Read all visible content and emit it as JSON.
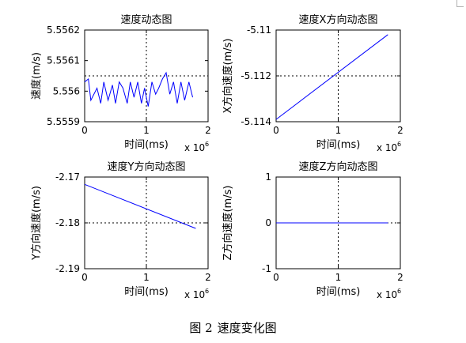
{
  "figure": {
    "caption_number": "图 2",
    "caption_text": "速度变化图"
  },
  "chart_data": [
    {
      "type": "line",
      "title": "速度动态图",
      "xlabel": "时间(ms)",
      "ylabel": "速度(m/s)",
      "x_exponent_label": "x 10",
      "x_exponent_power": "6",
      "xlim": [
        0,
        2
      ],
      "ylim": [
        5.5559,
        5.5562
      ],
      "xticks": [
        "0",
        "1",
        "2"
      ],
      "yticks": [
        "5.5559",
        "5.556",
        "5.5561",
        "5.5562"
      ],
      "ytick_values": [
        5.5559,
        5.556,
        5.5561,
        5.5562
      ],
      "grid": "dotted at x=1 and middle y",
      "color": "#0000ff",
      "series": [
        {
          "x": [
            0,
            0.06,
            0.1,
            0.2,
            0.26,
            0.31,
            0.38,
            0.45,
            0.5,
            0.56,
            0.62,
            0.69,
            0.74,
            0.8,
            0.86,
            0.92,
            0.97,
            1.03,
            1.09,
            1.15,
            1.2,
            1.26,
            1.32,
            1.38,
            1.44,
            1.5,
            1.56,
            1.62,
            1.69,
            1.75
          ],
          "y": [
            5.55603,
            5.55604,
            5.55597,
            5.55601,
            5.55596,
            5.55603,
            5.55597,
            5.55602,
            5.55596,
            5.55603,
            5.55601,
            5.55596,
            5.55603,
            5.55598,
            5.55603,
            5.55596,
            5.55601,
            5.55595,
            5.55603,
            5.55599,
            5.55601,
            5.55604,
            5.55606,
            5.55599,
            5.55603,
            5.55596,
            5.55603,
            5.55597,
            5.55603,
            5.55598
          ]
        }
      ]
    },
    {
      "type": "line",
      "title": "速度X方向动态图",
      "xlabel": "时间(ms)",
      "ylabel": "X方向速度(m/s)",
      "x_exponent_label": "x 10",
      "x_exponent_power": "6",
      "xlim": [
        0,
        2
      ],
      "ylim": [
        -5.114,
        -5.11
      ],
      "xticks": [
        "0",
        "1",
        "2"
      ],
      "yticks": [
        "-5.114",
        "-5.112",
        "-5.11"
      ],
      "ytick_values": [
        -5.114,
        -5.112,
        -5.11
      ],
      "grid": "dotted at x=1 and y=-5.112",
      "color": "#0000ff",
      "series": [
        {
          "x": [
            0,
            1.8
          ],
          "y": [
            -5.1139,
            -5.1102
          ]
        }
      ]
    },
    {
      "type": "line",
      "title": "速度Y方向动态图",
      "xlabel": "时间(ms)",
      "ylabel": "Y方向速度(m/s)",
      "x_exponent_label": "x 10",
      "x_exponent_power": "6",
      "xlim": [
        0,
        2
      ],
      "ylim": [
        -2.19,
        -2.17
      ],
      "xticks": [
        "0",
        "1",
        "2"
      ],
      "yticks": [
        "-2.19",
        "-2.18",
        "-2.17"
      ],
      "ytick_values": [
        -2.19,
        -2.18,
        -2.17
      ],
      "grid": "dotted at x=1 and y=-2.18",
      "color": "#0000ff",
      "series": [
        {
          "x": [
            0,
            1.8
          ],
          "y": [
            -2.1716,
            -2.1812
          ]
        }
      ]
    },
    {
      "type": "line",
      "title": "速度Z方向动态图",
      "xlabel": "时间(ms)",
      "ylabel": "Z方向速度(m/s)",
      "x_exponent_label": "x 10",
      "x_exponent_power": "6",
      "xlim": [
        0,
        2
      ],
      "ylim": [
        -1,
        1
      ],
      "xticks": [
        "0",
        "1",
        "2"
      ],
      "yticks": [
        "-1",
        "0",
        "1"
      ],
      "ytick_values": [
        -1,
        0,
        1
      ],
      "grid": "dotted at x=1 and y=0",
      "color": "#0000ff",
      "series": [
        {
          "x": [
            0,
            1.8
          ],
          "y": [
            0,
            0
          ]
        }
      ]
    }
  ]
}
